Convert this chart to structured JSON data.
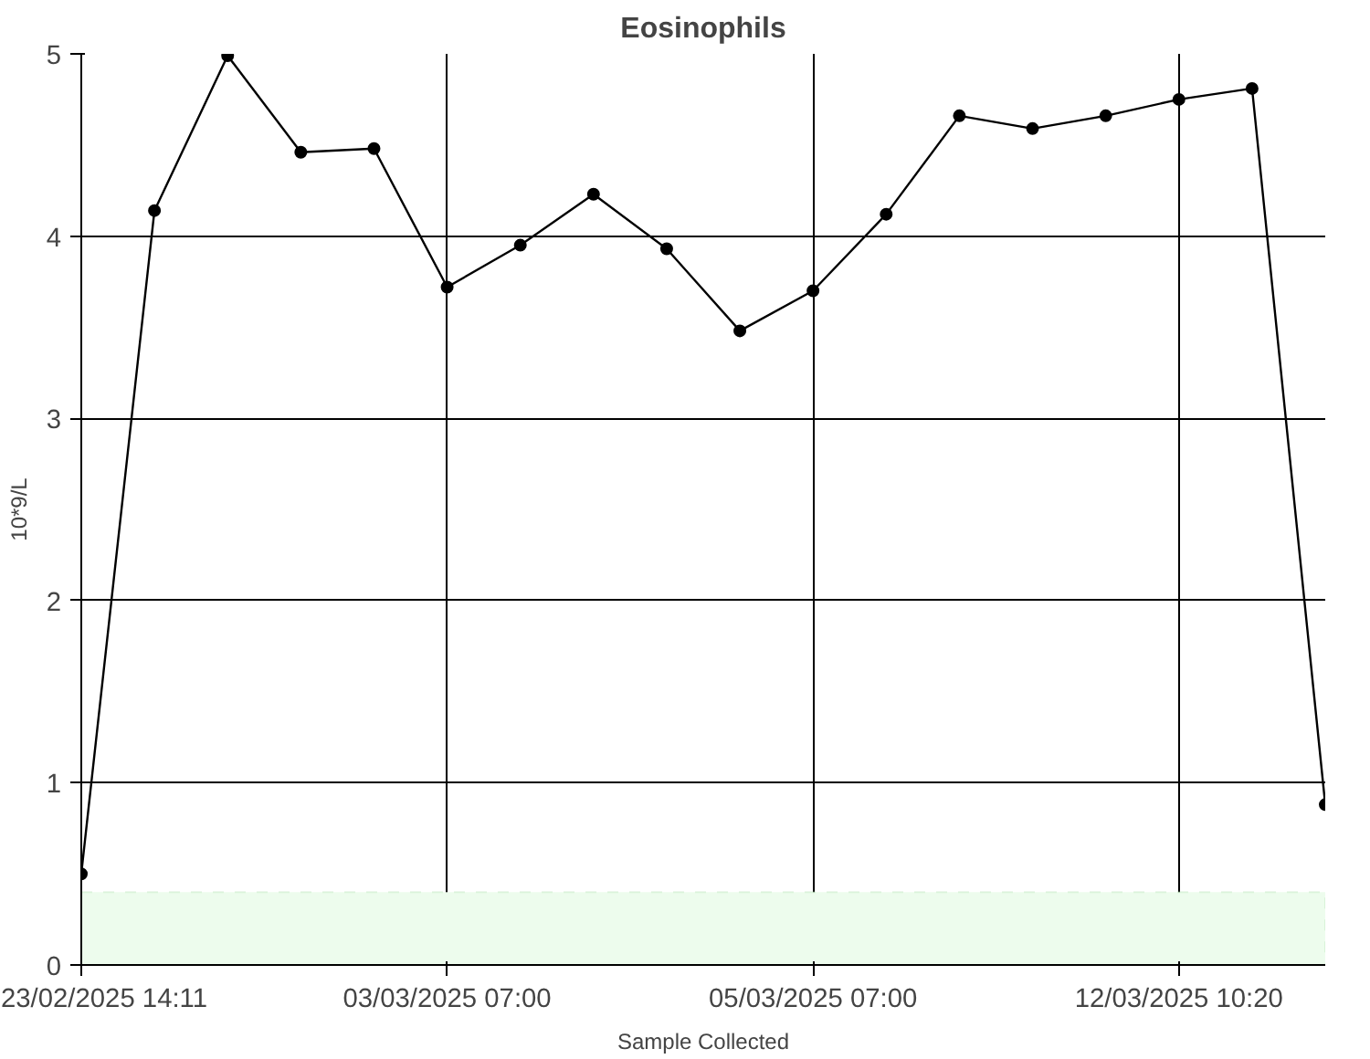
{
  "chart_data": {
    "type": "line",
    "title": "Eosinophils",
    "xlabel": "Sample Collected",
    "ylabel": "10*9/L",
    "categories": [
      "23/02/2025 14:11",
      null,
      null,
      null,
      null,
      "03/03/2025 07:00",
      null,
      null,
      null,
      null,
      "05/03/2025 07:00",
      null,
      null,
      null,
      null,
      "12/03/2025 10:20",
      null,
      null
    ],
    "series": [
      {
        "color": "#000000",
        "values": [
          0.5,
          4.14,
          4.99,
          4.46,
          4.48,
          3.72,
          3.95,
          4.23,
          3.93,
          3.48,
          3.7,
          4.12,
          4.66,
          4.59,
          4.66,
          4.75,
          4.81,
          0.88
        ]
      }
    ],
    "ylim": [
      0,
      5
    ],
    "yticks": [
      0,
      1,
      2,
      3,
      4,
      5
    ],
    "grid": true,
    "marker": "circle",
    "line_style": "solid",
    "bands": [
      {
        "axis": "y",
        "from": 0,
        "to": 0.4,
        "color": "#edfced"
      }
    ]
  }
}
